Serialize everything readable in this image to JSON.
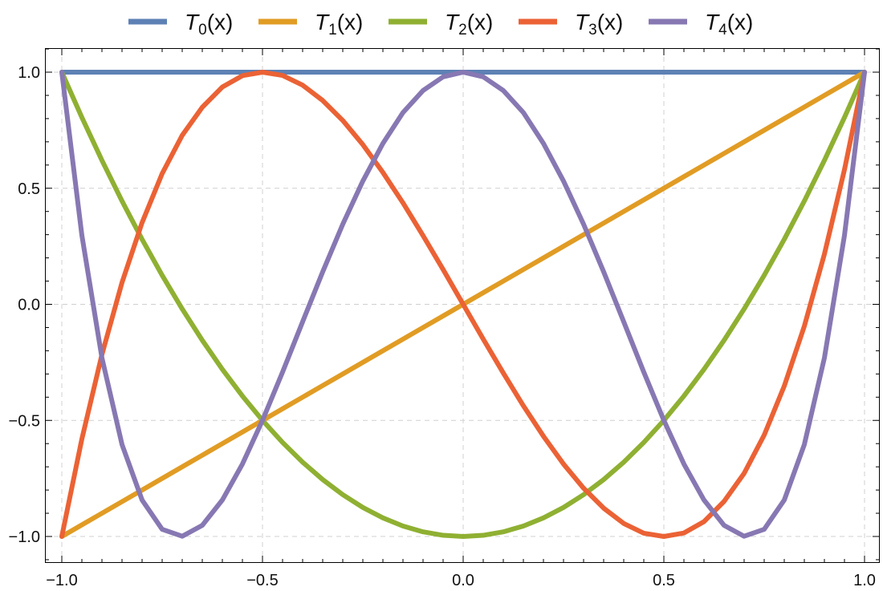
{
  "chart_data": {
    "type": "line",
    "title": "",
    "xlabel": "",
    "ylabel": "",
    "xlim": [
      -1.0,
      1.0
    ],
    "ylim": [
      -1.0,
      1.0
    ],
    "x_ticks": [
      "−1.0",
      "−0.5",
      "0.0",
      "0.5",
      "1.0"
    ],
    "y_ticks": [
      "1.0",
      "0.5",
      "0.0",
      "−0.5",
      "−1.0"
    ],
    "grid": true,
    "legend_position": "top",
    "x": [
      -1.0,
      -0.95,
      -0.9,
      -0.85,
      -0.8,
      -0.75,
      -0.7,
      -0.65,
      -0.6,
      -0.55,
      -0.5,
      -0.45,
      -0.4,
      -0.35,
      -0.3,
      -0.25,
      -0.2,
      -0.15,
      -0.1,
      -0.05,
      0.0,
      0.05,
      0.1,
      0.15,
      0.2,
      0.25,
      0.3,
      0.35,
      0.4,
      0.45,
      0.5,
      0.55,
      0.6,
      0.65,
      0.7,
      0.75,
      0.8,
      0.85,
      0.9,
      0.95,
      1.0
    ],
    "series": [
      {
        "name_main": "T",
        "name_sub": "0",
        "name_suffix": "(x)",
        "color": "#5e81b5",
        "values": [
          1,
          1,
          1,
          1,
          1,
          1,
          1,
          1,
          1,
          1,
          1,
          1,
          1,
          1,
          1,
          1,
          1,
          1,
          1,
          1,
          1,
          1,
          1,
          1,
          1,
          1,
          1,
          1,
          1,
          1,
          1,
          1,
          1,
          1,
          1,
          1,
          1,
          1,
          1,
          1,
          1
        ]
      },
      {
        "name_main": "T",
        "name_sub": "1",
        "name_suffix": "(x)",
        "color": "#e19c24",
        "values": [
          -1.0,
          -0.95,
          -0.9,
          -0.85,
          -0.8,
          -0.75,
          -0.7,
          -0.65,
          -0.6,
          -0.55,
          -0.5,
          -0.45,
          -0.4,
          -0.35,
          -0.3,
          -0.25,
          -0.2,
          -0.15,
          -0.1,
          -0.05,
          0.0,
          0.05,
          0.1,
          0.15,
          0.2,
          0.25,
          0.3,
          0.35,
          0.4,
          0.45,
          0.5,
          0.55,
          0.6,
          0.65,
          0.7,
          0.75,
          0.8,
          0.85,
          0.9,
          0.95,
          1.0
        ]
      },
      {
        "name_main": "T",
        "name_sub": "2",
        "name_suffix": "(x)",
        "color": "#8fb032",
        "values": [
          1.0,
          0.805,
          0.62,
          0.445,
          0.28,
          0.125,
          -0.02,
          -0.155,
          -0.28,
          -0.395,
          -0.5,
          -0.595,
          -0.68,
          -0.755,
          -0.82,
          -0.875,
          -0.92,
          -0.955,
          -0.98,
          -0.995,
          -1.0,
          -0.995,
          -0.98,
          -0.955,
          -0.92,
          -0.875,
          -0.82,
          -0.755,
          -0.68,
          -0.595,
          -0.5,
          -0.395,
          -0.28,
          -0.155,
          -0.02,
          0.125,
          0.28,
          0.445,
          0.62,
          0.805,
          1.0
        ]
      },
      {
        "name_main": "T",
        "name_sub": "3",
        "name_suffix": "(x)",
        "color": "#eb6235",
        "values": [
          -1.0,
          -0.58,
          -0.216,
          0.094,
          0.352,
          0.563,
          0.728,
          0.849,
          0.936,
          0.985,
          1.0,
          0.986,
          0.944,
          0.878,
          0.792,
          0.688,
          0.568,
          0.437,
          0.296,
          0.15,
          0.0,
          -0.15,
          -0.296,
          -0.437,
          -0.568,
          -0.688,
          -0.792,
          -0.878,
          -0.944,
          -0.986,
          -1.0,
          -0.985,
          -0.936,
          -0.849,
          -0.728,
          -0.563,
          -0.352,
          -0.094,
          0.216,
          0.58,
          1.0
        ]
      },
      {
        "name_main": "T",
        "name_sub": "4",
        "name_suffix": "(x)",
        "color": "#8778b3",
        "values": [
          1.0,
          0.297,
          -0.231,
          -0.604,
          -0.843,
          -0.969,
          -0.999,
          -0.952,
          -0.843,
          -0.688,
          -0.5,
          -0.292,
          -0.075,
          0.14,
          0.345,
          0.531,
          0.693,
          0.826,
          0.921,
          0.98,
          1.0,
          0.98,
          0.921,
          0.826,
          0.693,
          0.531,
          0.345,
          0.14,
          -0.075,
          -0.292,
          -0.5,
          -0.688,
          -0.843,
          -0.952,
          -0.999,
          -0.969,
          -0.843,
          -0.604,
          -0.231,
          0.297,
          1.0
        ]
      }
    ]
  }
}
